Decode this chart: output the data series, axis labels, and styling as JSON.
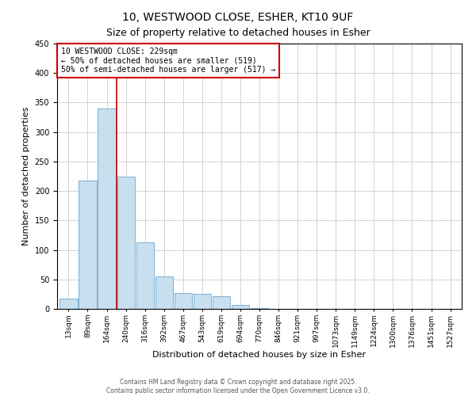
{
  "title": "10, WESTWOOD CLOSE, ESHER, KT10 9UF",
  "subtitle": "Size of property relative to detached houses in Esher",
  "xlabel": "Distribution of detached houses by size in Esher",
  "ylabel": "Number of detached properties",
  "bar_labels": [
    "13sqm",
    "89sqm",
    "164sqm",
    "240sqm",
    "316sqm",
    "392sqm",
    "467sqm",
    "543sqm",
    "619sqm",
    "694sqm",
    "770sqm",
    "846sqm",
    "921sqm",
    "997sqm",
    "1073sqm",
    "1149sqm",
    "1224sqm",
    "1300sqm",
    "1376sqm",
    "1451sqm",
    "1527sqm"
  ],
  "bar_values": [
    17,
    217,
    340,
    224,
    113,
    55,
    27,
    25,
    22,
    7,
    1,
    0,
    0,
    0,
    0,
    0,
    0,
    0,
    0,
    0,
    0
  ],
  "bar_color": "#c8dff0",
  "bar_edge_color": "#7ab0d4",
  "vline_x": 2.5,
  "vline_color": "#cc0000",
  "annotation_text": "10 WESTWOOD CLOSE: 229sqm\n← 50% of detached houses are smaller (519)\n50% of semi-detached houses are larger (517) →",
  "annotation_box_color": "#ffffff",
  "annotation_box_edge": "#cc0000",
  "ylim": [
    0,
    450
  ],
  "yticks": [
    0,
    50,
    100,
    150,
    200,
    250,
    300,
    350,
    400,
    450
  ],
  "bg_color": "#ffffff",
  "grid_color": "#cccccc",
  "footer_line1": "Contains HM Land Registry data © Crown copyright and database right 2025.",
  "footer_line2": "Contains public sector information licensed under the Open Government Licence v3.0.",
  "title_fontsize": 10,
  "subtitle_fontsize": 9,
  "tick_fontsize": 6.5,
  "axis_label_fontsize": 8,
  "annotation_fontsize": 7,
  "footer_fontsize": 5.5
}
